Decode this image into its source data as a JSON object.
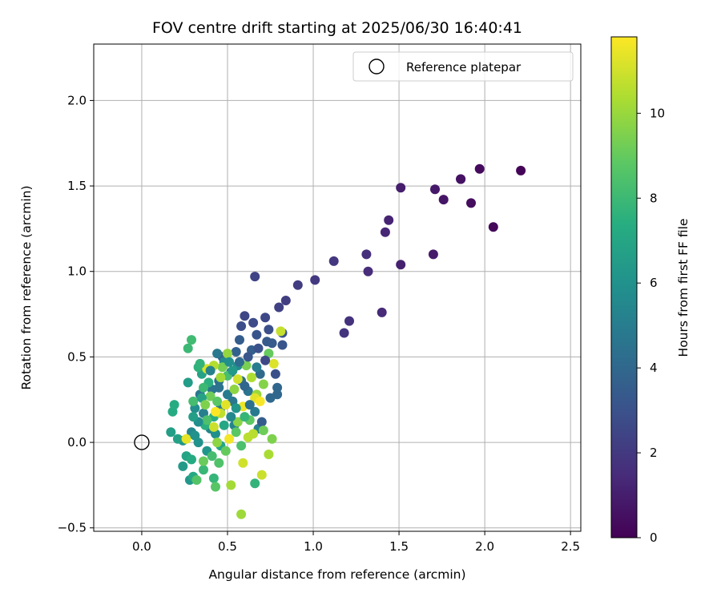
{
  "chart_data": {
    "type": "scatter",
    "title": "FOV centre drift starting at 2025/06/30 16:40:41",
    "xlabel": "Angular distance from reference (arcmin)",
    "ylabel": "Rotation from reference (arcmin)",
    "xlim": [
      -0.28,
      2.56
    ],
    "ylim": [
      -0.52,
      2.33
    ],
    "x_ticks": [
      0.0,
      0.5,
      1.0,
      1.5,
      2.0,
      2.5
    ],
    "x_tick_labels": [
      "0.0",
      "0.5",
      "1.0",
      "1.5",
      "2.0",
      "2.5"
    ],
    "y_ticks": [
      -0.5,
      0.0,
      0.5,
      1.0,
      1.5,
      2.0
    ],
    "y_tick_labels": [
      "−0.5",
      "0.0",
      "0.5",
      "1.0",
      "1.5",
      "2.0"
    ],
    "grid": true,
    "legend": {
      "placement": "top-right",
      "entries": [
        {
          "label": "Reference platepar",
          "marker": "open-circle"
        }
      ]
    },
    "reference_point": {
      "x": 0.0,
      "y": 0.0
    },
    "colorbar": {
      "label": "Hours from first FF file",
      "colormap": "viridis",
      "range": [
        0,
        11.8
      ],
      "ticks": [
        0,
        2,
        4,
        6,
        8,
        10
      ],
      "tick_labels": [
        "0",
        "2",
        "4",
        "6",
        "8",
        "10"
      ]
    },
    "points": [
      [
        2.21,
        1.59,
        0.1
      ],
      [
        2.05,
        1.26,
        0.2
      ],
      [
        1.97,
        1.6,
        0.3
      ],
      [
        1.92,
        1.4,
        0.4
      ],
      [
        1.86,
        1.54,
        0.5
      ],
      [
        1.86,
        1.54,
        0.6
      ],
      [
        1.76,
        1.42,
        0.7
      ],
      [
        1.71,
        1.48,
        0.8
      ],
      [
        1.7,
        1.1,
        0.9
      ],
      [
        1.51,
        1.49,
        1.0
      ],
      [
        1.51,
        1.04,
        1.1
      ],
      [
        1.44,
        1.3,
        1.2
      ],
      [
        1.42,
        1.23,
        1.3
      ],
      [
        1.4,
        0.76,
        1.4
      ],
      [
        1.32,
        1.0,
        1.5
      ],
      [
        1.31,
        1.1,
        1.6
      ],
      [
        1.21,
        0.71,
        1.7
      ],
      [
        1.18,
        0.64,
        1.8
      ],
      [
        1.12,
        1.06,
        1.9
      ],
      [
        1.01,
        0.95,
        2.0
      ],
      [
        0.91,
        0.92,
        2.1
      ],
      [
        0.84,
        0.83,
        2.2
      ],
      [
        0.8,
        0.79,
        2.3
      ],
      [
        0.66,
        0.97,
        2.4
      ],
      [
        0.6,
        0.74,
        2.5
      ],
      [
        0.72,
        0.73,
        2.6
      ],
      [
        0.65,
        0.7,
        2.7
      ],
      [
        0.58,
        0.68,
        2.8
      ],
      [
        0.74,
        0.66,
        2.9
      ],
      [
        0.82,
        0.64,
        3.0
      ],
      [
        0.67,
        0.63,
        3.1
      ],
      [
        0.82,
        0.57,
        3.2
      ],
      [
        0.73,
        0.59,
        3.3
      ],
      [
        0.76,
        0.58,
        3.4
      ],
      [
        0.57,
        0.6,
        3.5
      ],
      [
        0.64,
        0.54,
        3.6
      ],
      [
        0.55,
        0.53,
        3.7
      ],
      [
        0.47,
        0.5,
        3.8
      ],
      [
        0.79,
        0.32,
        3.9
      ],
      [
        0.79,
        0.28,
        4.0
      ],
      [
        0.69,
        0.4,
        4.1
      ],
      [
        0.52,
        0.41,
        4.2
      ],
      [
        0.58,
        0.36,
        4.3
      ],
      [
        0.45,
        0.36,
        4.4
      ],
      [
        0.62,
        0.3,
        4.5
      ],
      [
        0.41,
        0.31,
        4.6
      ],
      [
        0.53,
        0.24,
        4.7
      ],
      [
        0.34,
        0.28,
        4.8
      ],
      [
        0.66,
        0.18,
        4.9
      ],
      [
        0.46,
        0.2,
        5.0
      ],
      [
        0.36,
        0.17,
        5.1
      ],
      [
        0.68,
        0.08,
        5.2
      ],
      [
        0.54,
        0.1,
        5.3
      ],
      [
        0.4,
        0.08,
        5.4
      ],
      [
        0.29,
        0.06,
        5.5
      ],
      [
        0.48,
        0.47,
        5.6
      ],
      [
        0.56,
        0.45,
        5.7
      ],
      [
        0.31,
        0.2,
        5.8
      ],
      [
        0.43,
        0.05,
        5.9
      ],
      [
        0.33,
        0.0,
        6.0
      ],
      [
        0.24,
        0.01,
        6.1
      ],
      [
        0.38,
        -0.05,
        6.2
      ],
      [
        0.28,
        -0.22,
        6.3
      ],
      [
        0.24,
        -0.14,
        6.4
      ],
      [
        0.27,
        0.35,
        6.5
      ],
      [
        0.17,
        0.06,
        6.6
      ],
      [
        0.21,
        0.02,
        6.7
      ],
      [
        0.35,
        0.4,
        6.8
      ],
      [
        0.26,
        -0.08,
        6.9
      ],
      [
        0.46,
        -0.02,
        7.0
      ],
      [
        0.3,
        -0.2,
        7.1
      ],
      [
        0.18,
        0.18,
        7.2
      ],
      [
        0.19,
        0.22,
        7.3
      ],
      [
        0.42,
        0.15,
        7.4
      ],
      [
        0.37,
        0.1,
        7.5
      ],
      [
        0.33,
        0.44,
        7.6
      ],
      [
        0.66,
        -0.24,
        7.7
      ],
      [
        0.42,
        -0.21,
        7.8
      ],
      [
        0.36,
        -0.16,
        7.9
      ],
      [
        0.27,
        0.55,
        8.0
      ],
      [
        0.29,
        0.6,
        8.1
      ],
      [
        0.3,
        0.24,
        8.2
      ],
      [
        0.5,
        0.39,
        8.3
      ],
      [
        0.38,
        0.13,
        8.4
      ],
      [
        0.45,
        -0.12,
        8.5
      ],
      [
        0.32,
        -0.22,
        8.6
      ],
      [
        0.43,
        -0.26,
        8.7
      ],
      [
        0.55,
        0.06,
        8.8
      ],
      [
        0.63,
        0.13,
        8.9
      ],
      [
        0.74,
        0.52,
        9.0
      ],
      [
        0.36,
        -0.11,
        9.1
      ],
      [
        0.4,
        0.27,
        9.2
      ],
      [
        0.47,
        0.44,
        9.3
      ],
      [
        0.61,
        0.45,
        9.4
      ],
      [
        0.76,
        0.02,
        9.5
      ],
      [
        0.71,
        0.34,
        9.6
      ],
      [
        0.56,
        0.12,
        9.7
      ],
      [
        0.44,
        0.0,
        9.8
      ],
      [
        0.5,
        0.52,
        9.9
      ],
      [
        0.67,
        0.28,
        10.0
      ],
      [
        0.58,
        -0.42,
        10.1
      ],
      [
        0.52,
        -0.25,
        10.2
      ],
      [
        0.74,
        -0.07,
        10.3
      ],
      [
        0.64,
        0.38,
        10.4
      ],
      [
        0.42,
        0.45,
        10.5
      ],
      [
        0.62,
        0.03,
        10.6
      ],
      [
        0.46,
        0.17,
        10.7
      ],
      [
        0.81,
        0.65,
        10.8
      ],
      [
        0.7,
        -0.19,
        10.9
      ],
      [
        0.59,
        -0.12,
        11.0
      ],
      [
        0.38,
        0.43,
        11.1
      ],
      [
        0.77,
        0.46,
        11.2
      ],
      [
        0.66,
        0.26,
        11.3
      ],
      [
        0.26,
        0.02,
        11.4
      ],
      [
        0.59,
        0.21,
        11.5
      ],
      [
        0.51,
        0.02,
        11.6
      ],
      [
        0.69,
        0.24,
        11.7
      ],
      [
        0.43,
        0.18,
        11.8
      ],
      [
        0.4,
        0.42,
        5.2
      ],
      [
        0.45,
        0.32,
        4.5
      ],
      [
        0.5,
        0.28,
        4.9
      ],
      [
        0.55,
        0.2,
        6.2
      ],
      [
        0.6,
        0.33,
        3.9
      ],
      [
        0.35,
        0.26,
        6.8
      ],
      [
        0.48,
        0.1,
        7.0
      ],
      [
        0.52,
        0.15,
        5.5
      ],
      [
        0.63,
        0.22,
        4.4
      ],
      [
        0.7,
        0.12,
        3.5
      ],
      [
        0.33,
        0.12,
        5.8
      ],
      [
        0.39,
        0.35,
        7.5
      ],
      [
        0.44,
        0.24,
        8.8
      ],
      [
        0.57,
        0.47,
        4.2
      ],
      [
        0.62,
        0.5,
        3.2
      ],
      [
        0.72,
        0.48,
        2.6
      ],
      [
        0.68,
        0.55,
        3.0
      ],
      [
        0.53,
        0.42,
        6.4
      ],
      [
        0.49,
        -0.05,
        9.0
      ],
      [
        0.41,
        -0.08,
        8.2
      ],
      [
        0.31,
        0.04,
        6.0
      ],
      [
        0.29,
        -0.1,
        7.2
      ],
      [
        0.37,
        0.22,
        9.5
      ],
      [
        0.46,
        0.38,
        10.2
      ],
      [
        0.54,
        0.31,
        9.8
      ],
      [
        0.65,
        0.05,
        10.6
      ],
      [
        0.71,
        0.07,
        9.2
      ],
      [
        0.58,
        -0.02,
        8.4
      ],
      [
        0.49,
        0.22,
        11.3
      ],
      [
        0.42,
        0.09,
        10.9
      ],
      [
        0.36,
        0.32,
        8.0
      ],
      [
        0.6,
        0.15,
        7.8
      ],
      [
        0.67,
        0.44,
        5.0
      ],
      [
        0.75,
        0.26,
        4.0
      ],
      [
        0.78,
        0.4,
        2.9
      ],
      [
        0.34,
        0.46,
        7.7
      ],
      [
        0.3,
        0.15,
        6.6
      ],
      [
        0.44,
        0.52,
        4.8
      ],
      [
        0.51,
        0.47,
        5.9
      ],
      [
        0.56,
        0.37,
        11.0
      ]
    ]
  }
}
